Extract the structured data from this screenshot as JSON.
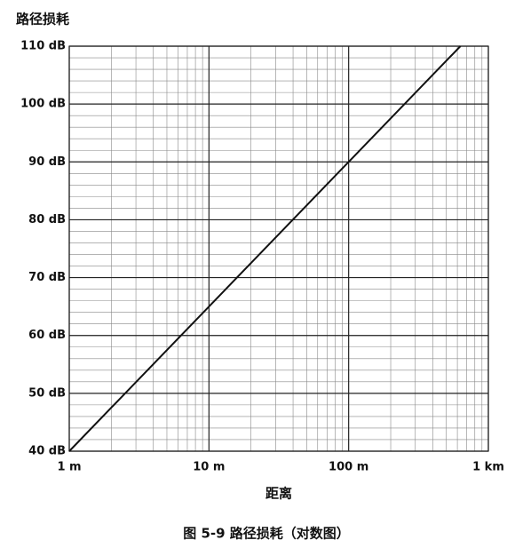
{
  "chart_data": {
    "type": "line",
    "y_title": "路径损耗",
    "x_title": "距离",
    "caption": "图 5-9   路径损耗（对数图）",
    "x": [
      1,
      10,
      100,
      631
    ],
    "series": [
      {
        "color": "#111111",
        "values": [
          40,
          65,
          90,
          110
        ]
      }
    ],
    "xlog": true,
    "xlim": [
      1,
      1000
    ],
    "xticks": [
      {
        "value": 1,
        "label": "1 m"
      },
      {
        "value": 10,
        "label": "10 m"
      },
      {
        "value": 100,
        "label": "100 m"
      },
      {
        "value": 1000,
        "label": "1 km"
      }
    ],
    "ylim": [
      40,
      110
    ],
    "yticks": [
      {
        "value": 40,
        "label": "40 dB"
      },
      {
        "value": 50,
        "label": "50 dB"
      },
      {
        "value": 60,
        "label": "60 dB"
      },
      {
        "value": 70,
        "label": "70 dB"
      },
      {
        "value": 80,
        "label": "80 dB"
      },
      {
        "value": 90,
        "label": "90 dB"
      },
      {
        "value": 100,
        "label": "100 dB"
      },
      {
        "value": 110,
        "label": "110 dB"
      }
    ],
    "grid": true,
    "minor_grid": true
  }
}
